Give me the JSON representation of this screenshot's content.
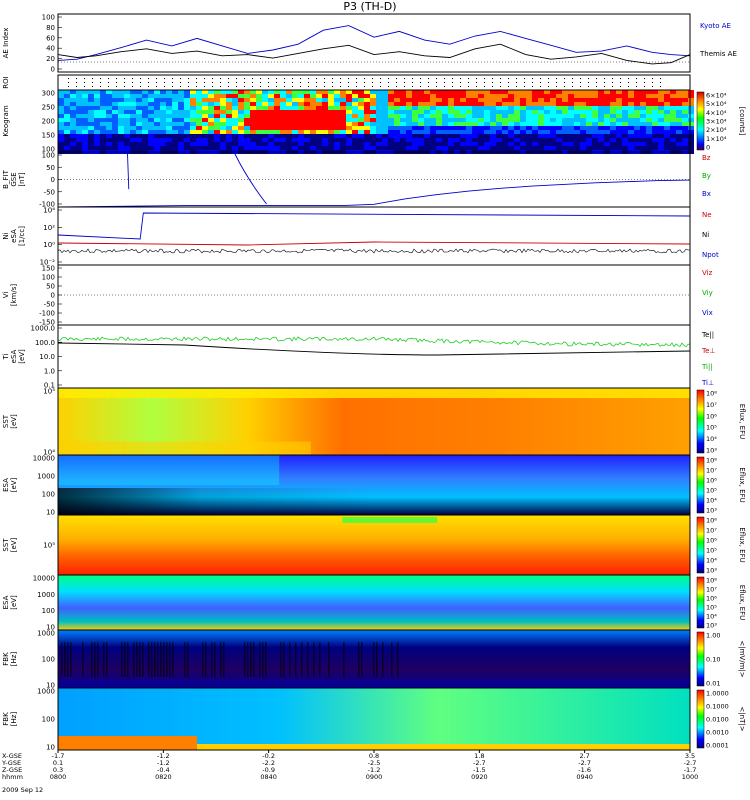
{
  "title": "P3 (TH-D)",
  "date_label": "2009 Sep 12",
  "colors": {
    "blue": "#0000cc",
    "red": "#cc0000",
    "green": "#00aa00",
    "black": "#000000",
    "teal": "#008080",
    "grid": "#000000"
  },
  "chart_data": [
    {
      "type": "line",
      "panel": "ae",
      "ylabel": "AE Index",
      "ylim": [
        0,
        100
      ],
      "yticks": [
        "100",
        "80",
        "60",
        "40",
        "20",
        "0"
      ],
      "series": [
        {
          "name": "Kyoto AE",
          "color": "#0000cc",
          "x": [
            0,
            0.03,
            0.06,
            0.1,
            0.14,
            0.18,
            0.22,
            0.26,
            0.3,
            0.34,
            0.38,
            0.42,
            0.46,
            0.5,
            0.54,
            0.58,
            0.62,
            0.66,
            0.7,
            0.74,
            0.78,
            0.82,
            0.86,
            0.9,
            0.94,
            0.97,
            1.0
          ],
          "y": [
            20,
            22,
            30,
            42,
            55,
            45,
            58,
            45,
            32,
            38,
            48,
            72,
            80,
            60,
            70,
            55,
            48,
            62,
            70,
            58,
            46,
            34,
            36,
            45,
            34,
            30,
            28
          ]
        },
        {
          "name": "Themis AE",
          "color": "#000000",
          "x": [
            0,
            0.03,
            0.06,
            0.1,
            0.14,
            0.18,
            0.22,
            0.26,
            0.3,
            0.34,
            0.38,
            0.42,
            0.46,
            0.5,
            0.54,
            0.58,
            0.62,
            0.66,
            0.7,
            0.74,
            0.78,
            0.82,
            0.86,
            0.9,
            0.94,
            0.97,
            1.0
          ],
          "y": [
            30,
            25,
            28,
            35,
            40,
            32,
            36,
            28,
            30,
            24,
            32,
            40,
            46,
            30,
            35,
            28,
            25,
            40,
            48,
            30,
            22,
            26,
            32,
            20,
            14,
            16,
            30
          ]
        }
      ]
    },
    {
      "type": "scatter",
      "panel": "roi",
      "ylabel": "ROI"
    },
    {
      "type": "heatmap",
      "panel": "keogram",
      "ylabel": "Keogram",
      "ylim": [
        100,
        300
      ],
      "yticks": [
        "300",
        "250",
        "200",
        "150",
        "100"
      ],
      "colorbar_ticks": [
        "6×10⁴",
        "5×10⁴",
        "4×10⁴",
        "3×10⁴",
        "2×10⁴",
        "1×10⁴",
        "0"
      ],
      "colorbar_label": "[counts]"
    },
    {
      "type": "line",
      "panel": "bfit",
      "ylabel": "B_FIT",
      "ylabel2": "GSE",
      "ylabel3": "[nT]",
      "ylim": [
        -100,
        100
      ],
      "yticks": [
        "100",
        "50",
        "0",
        "-50",
        "-100"
      ],
      "series": [
        {
          "name": "Bz",
          "color": "#cc0000"
        },
        {
          "name": "By",
          "color": "#00aa00"
        },
        {
          "name": "Bx",
          "color": "#0000cc",
          "x": [
            0,
            0.2,
            0.25,
            0.35,
            0.4,
            0.45,
            0.5,
            0.55,
            0.6,
            0.65,
            0.7,
            0.75,
            0.8,
            0.85,
            0.9,
            0.95,
            1.0
          ],
          "y": [
            -100,
            -95,
            -95,
            -95,
            -95,
            -95,
            -90,
            -70,
            -55,
            -42,
            -32,
            -24,
            -18,
            -12,
            -8,
            -4,
            -2
          ]
        }
      ]
    },
    {
      "type": "line",
      "panel": "density",
      "ylabel": "Ni",
      "ylabel2": "eSA",
      "ylabel3": "[1/cc]",
      "ylim": [
        -3,
        5
      ],
      "yticks": [
        "10⁴",
        "10²",
        "10⁰",
        "10⁻²"
      ],
      "series": [
        {
          "name": "Ne",
          "color": "#cc0000"
        },
        {
          "name": "Ni",
          "color": "#000000"
        },
        {
          "name": "Npot",
          "color": "#0000cc"
        }
      ]
    },
    {
      "type": "line",
      "panel": "velocity",
      "ylabel": "Vi",
      "ylabel2": "[km/s]",
      "ylim": [
        -150,
        150
      ],
      "yticks": [
        "150",
        "100",
        "50",
        "0",
        "-50",
        "-100",
        "-150"
      ],
      "series": [
        {
          "name": "Viz",
          "color": "#cc0000"
        },
        {
          "name": "Viy",
          "color": "#00aa00"
        },
        {
          "name": "Vix",
          "color": "#0000cc"
        }
      ]
    },
    {
      "type": "line",
      "panel": "temperature",
      "ylabel": "Ti",
      "ylabel2": "eSA",
      "ylabel3": "[eV]",
      "ylim": [
        -1,
        3
      ],
      "yticks": [
        "1000.0",
        "100.0",
        "10.0",
        "1.0",
        "0.1"
      ],
      "series": [
        {
          "name": "Te||",
          "color": "#000000"
        },
        {
          "name": "Te⊥",
          "color": "#cc0000"
        },
        {
          "name": "Ti||",
          "color": "#00aa00"
        },
        {
          "name": "Ti⊥",
          "color": "#0000cc"
        }
      ]
    },
    {
      "type": "heatmap",
      "panel": "sst1",
      "ylabel": "SST",
      "ylabel2": "[eV]",
      "yticks": [
        "10⁵",
        "10⁴"
      ],
      "colorbar_ticks": [
        "10⁸",
        "10⁷",
        "10⁶",
        "10⁵",
        "10⁴",
        "10³"
      ],
      "colorbar_label": "Eflux, EFU"
    },
    {
      "type": "heatmap",
      "panel": "esa1",
      "ylabel": "ESA",
      "ylabel2": "[eV]",
      "yticks": [
        "10000",
        "1000",
        "100",
        "10"
      ],
      "colorbar_ticks": [
        "10⁸",
        "10⁷",
        "10⁶",
        "10⁵",
        "10⁴",
        "10³"
      ],
      "colorbar_label": "Eflux, EFU"
    },
    {
      "type": "heatmap",
      "panel": "sst2",
      "ylabel": "SST",
      "ylabel2": "[eV]",
      "yticks": [
        "10⁵"
      ],
      "colorbar_ticks": [
        "10⁸",
        "10⁷",
        "10⁶",
        "10⁵",
        "10⁴",
        "10³"
      ],
      "colorbar_label": "Eflux, EFU"
    },
    {
      "type": "heatmap",
      "panel": "esa2",
      "ylabel": "ESA",
      "ylabel2": "[eV]",
      "yticks": [
        "10000",
        "1000",
        "100",
        "10"
      ],
      "colorbar_ticks": [
        "10⁸",
        "10⁷",
        "10⁶",
        "10⁵",
        "10⁴",
        "10³"
      ],
      "colorbar_label": "Eflux, EFU"
    },
    {
      "type": "heatmap",
      "panel": "fbk1",
      "ylabel": "FBK",
      "ylabel2": "[Hz]",
      "yticks": [
        "1000",
        "100",
        "10"
      ],
      "colorbar_ticks": [
        "1.00",
        "0.10",
        "0.01"
      ],
      "colorbar_label": "<|mV/m|>"
    },
    {
      "type": "heatmap",
      "panel": "fbk2",
      "ylabel": "FBK",
      "ylabel2": "[Hz]",
      "yticks": [
        "1000",
        "100",
        "10"
      ],
      "colorbar_ticks": [
        "1.0000",
        "0.1000",
        "0.0100",
        "0.0010",
        "0.0001"
      ],
      "colorbar_label": "<|nT|>"
    }
  ],
  "x_axis": {
    "row_labels": [
      "X-GSE",
      "Y-GSE",
      "Z-GSE",
      "hhmm"
    ],
    "ticks": [
      {
        "t": 0.0,
        "vals": [
          "-1.7",
          "0.1",
          "0.3",
          "0800"
        ]
      },
      {
        "t": 0.1667,
        "vals": [
          "-1.2",
          "-1.2",
          "-0.4",
          "0820"
        ]
      },
      {
        "t": 0.3333,
        "vals": [
          "-0.2",
          "-2.2",
          "-0.9",
          "0840"
        ]
      },
      {
        "t": 0.5,
        "vals": [
          "0.8",
          "-2.5",
          "-1.2",
          "0900"
        ]
      },
      {
        "t": 0.6667,
        "vals": [
          "1.8",
          "-2.7",
          "-1.5",
          "0920"
        ]
      },
      {
        "t": 0.8333,
        "vals": [
          "2.7",
          "-2.7",
          "-1.6",
          "0940"
        ]
      },
      {
        "t": 1.0,
        "vals": [
          "3.5",
          "-2.7",
          "-1.7",
          "1000"
        ]
      }
    ]
  }
}
